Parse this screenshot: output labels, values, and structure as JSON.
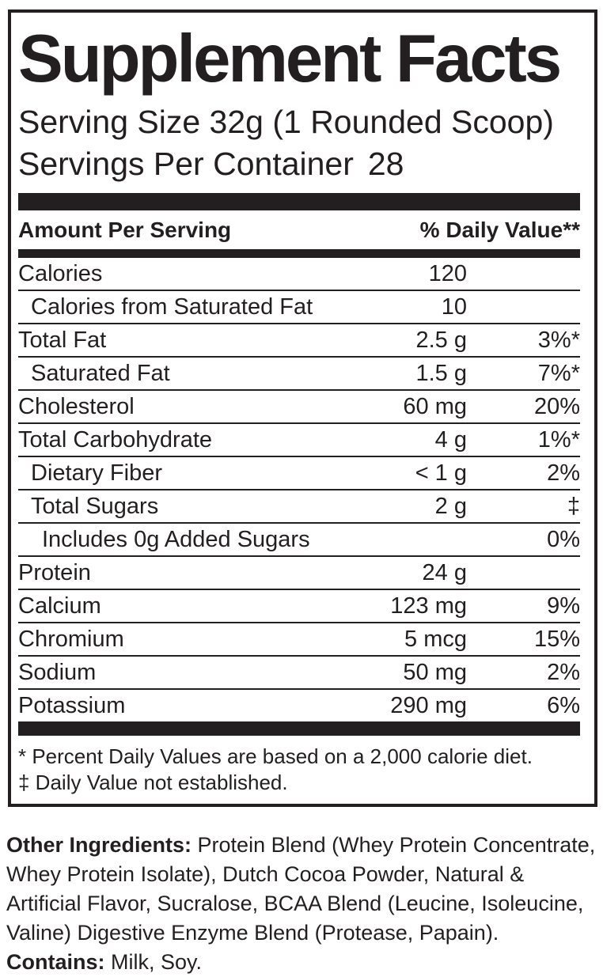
{
  "header": {
    "title": "Supplement Facts",
    "serving_size": "Serving Size 32g (1 Rounded Scoop)",
    "servings_per_container_label": "Servings Per Container",
    "servings_per_container_value": "28",
    "amount_per_serving": "Amount Per Serving",
    "daily_value_header": "% Daily Value**"
  },
  "rows": [
    {
      "label": "Calories",
      "amount": "120",
      "dv": ""
    },
    {
      "label": "Calories from Saturated Fat",
      "amount": "10",
      "dv": ""
    },
    {
      "label": "Total Fat",
      "amount": "2.5 g",
      "dv": "3%*"
    },
    {
      "label": "Saturated Fat",
      "amount": "1.5 g",
      "dv": "7%*"
    },
    {
      "label": "Cholesterol",
      "amount": "60 mg",
      "dv": "20%"
    },
    {
      "label": "Total Carbohydrate",
      "amount": "4 g",
      "dv": "1%*"
    },
    {
      "label": "Dietary Fiber",
      "amount": "< 1 g",
      "dv": "2%"
    },
    {
      "label": "Total Sugars",
      "amount": "2 g",
      "dv": "‡"
    },
    {
      "label": "Includes 0g Added Sugars",
      "amount": "",
      "dv": "0%"
    },
    {
      "label": "Protein",
      "amount": "24 g",
      "dv": ""
    },
    {
      "label": "Calcium",
      "amount": "123 mg",
      "dv": "9%"
    },
    {
      "label": "Chromium",
      "amount": "5 mcg",
      "dv": "15%"
    },
    {
      "label": "Sodium",
      "amount": "50 mg",
      "dv": "2%"
    },
    {
      "label": "Potassium",
      "amount": "290 mg",
      "dv": "6%"
    }
  ],
  "footnotes": {
    "percent_daily_value": "* Percent Daily Values are based on a 2,000 calorie diet.",
    "not_established": "‡ Daily Value not established."
  },
  "ingredients": {
    "label": "Other Ingredients:",
    "line1_rest": " Protein Blend (Whey Protein Concentrate,",
    "line2": "Whey Protein Isolate), Dutch Cocoa Powder, Natural &",
    "line3": "Artificial Flavor, Sucralose, BCAA Blend (Leucine, Isoleucine,",
    "line4": "Valine) Digestive Enzyme Blend (Protease, Papain).",
    "contains_label": "Contains:",
    "contains_rest": " Milk, Soy."
  },
  "colors": {
    "ink": "#231f20",
    "background": "#ffffff"
  }
}
